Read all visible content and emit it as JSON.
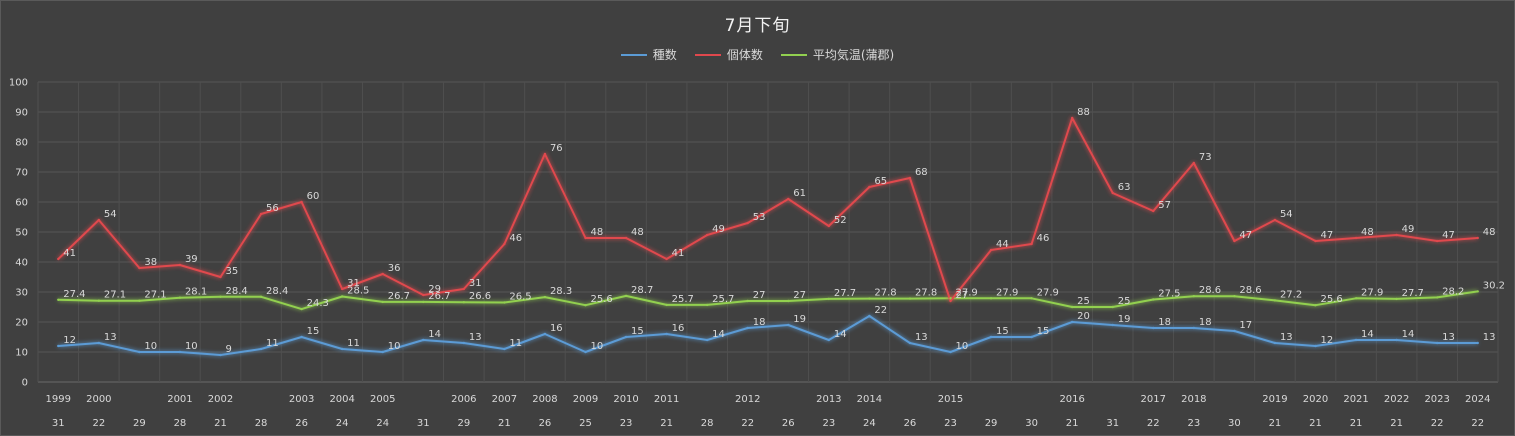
{
  "chart_data": {
    "type": "line",
    "title": "7月下旬",
    "ylim": [
      0,
      100
    ],
    "y_ticks": [
      0,
      10,
      20,
      30,
      40,
      50,
      60,
      70,
      80,
      90,
      100
    ],
    "grid": true,
    "legend_position": "top",
    "categories": [
      {
        "year": "1999",
        "day": "31"
      },
      {
        "year": "2000",
        "day": "22"
      },
      {
        "year": "",
        "day": "29"
      },
      {
        "year": "2001",
        "day": "28"
      },
      {
        "year": "2002",
        "day": "21"
      },
      {
        "year": "",
        "day": "28"
      },
      {
        "year": "2003",
        "day": "26"
      },
      {
        "year": "2004",
        "day": "24"
      },
      {
        "year": "2005",
        "day": "24"
      },
      {
        "year": "",
        "day": "31"
      },
      {
        "year": "2006",
        "day": "29"
      },
      {
        "year": "2007",
        "day": "21"
      },
      {
        "year": "2008",
        "day": "26"
      },
      {
        "year": "2009",
        "day": "25"
      },
      {
        "year": "2010",
        "day": "23"
      },
      {
        "year": "2011",
        "day": "21"
      },
      {
        "year": "",
        "day": "28"
      },
      {
        "year": "2012",
        "day": "22"
      },
      {
        "year": "",
        "day": "26"
      },
      {
        "year": "2013",
        "day": "23"
      },
      {
        "year": "2014",
        "day": "24"
      },
      {
        "year": "",
        "day": "26"
      },
      {
        "year": "2015",
        "day": "23"
      },
      {
        "year": "",
        "day": "29"
      },
      {
        "year": "",
        "day": "30"
      },
      {
        "year": "2016",
        "day": "21"
      },
      {
        "year": "",
        "day": "31"
      },
      {
        "year": "2017",
        "day": "22"
      },
      {
        "year": "2018",
        "day": "23"
      },
      {
        "year": "",
        "day": "30"
      },
      {
        "year": "2019",
        "day": "21"
      },
      {
        "year": "2020",
        "day": "21"
      },
      {
        "year": "2021",
        "day": "21"
      },
      {
        "year": "2022",
        "day": "21"
      },
      {
        "year": "2023",
        "day": "22"
      },
      {
        "year": "2024",
        "day": "22"
      }
    ],
    "series": [
      {
        "name": "種数",
        "color": "#5b9bd5",
        "values": [
          12,
          13,
          10,
          10,
          9,
          11,
          15,
          11,
          10,
          14,
          13,
          11,
          16,
          10,
          15,
          16,
          14,
          18,
          19,
          14,
          22,
          13,
          10,
          15,
          15,
          20,
          19,
          18,
          18,
          17,
          13,
          12,
          14,
          14,
          13,
          13
        ],
        "labels": [
          "12",
          "13",
          "10",
          "10",
          "9",
          "11",
          "15",
          "11",
          "10",
          "14",
          "13",
          "11",
          "16",
          "10",
          "15",
          "16",
          "14",
          "18",
          "19",
          "14",
          "22",
          "13",
          "10",
          "15",
          "15",
          "20",
          "19",
          "18",
          "18",
          "17",
          "13",
          "12",
          "14",
          "14",
          "13",
          "13"
        ]
      },
      {
        "name": "個体数",
        "color": "#e0484d",
        "values": [
          41,
          54,
          38,
          39,
          35,
          56,
          60,
          31,
          36,
          29,
          31,
          46,
          76,
          48,
          48,
          41,
          49,
          53,
          61,
          52,
          65,
          68,
          27,
          44,
          46,
          88,
          63,
          57,
          73,
          47,
          54,
          47,
          48,
          49,
          47,
          48
        ],
        "labels": [
          "41",
          "54",
          "38",
          "39",
          "35",
          "56",
          "60",
          "31",
          "36",
          "29",
          "31",
          "46",
          "76",
          "48",
          "48",
          "41",
          "49",
          "53",
          "61",
          "52",
          "65",
          "68",
          "27",
          "44",
          "46",
          "88",
          "63",
          "57",
          "73",
          "47",
          "54",
          "47",
          "48",
          "49",
          "47",
          "48"
        ]
      },
      {
        "name": "平均気温(蒲郡)",
        "color": "#92d050",
        "values": [
          27.4,
          27.1,
          27.1,
          28.1,
          28.4,
          28.4,
          24.3,
          28.5,
          26.7,
          26.7,
          26.6,
          26.5,
          28.3,
          25.6,
          28.7,
          25.7,
          25.7,
          27,
          27,
          27.7,
          27.8,
          27.8,
          27.9,
          27.9,
          27.9,
          25,
          25,
          27.5,
          28.6,
          28.6,
          27.2,
          25.6,
          27.9,
          27.7,
          28.2,
          30.2
        ],
        "labels": [
          "27.4",
          "27.1",
          "27.1",
          "28.1",
          "28.4",
          "28.4",
          "24.3",
          "28.5",
          "26.7",
          "26.7",
          "26.6",
          "26.5",
          "28.3",
          "25.6",
          "28.7",
          "25.7",
          "25.7",
          "27",
          "27",
          "27.7",
          "27.8",
          "27.8",
          "27.9",
          "27.9",
          "27.9",
          "25",
          "25",
          "27.5",
          "28.6",
          "28.6",
          "27.2",
          "25.6",
          "27.9",
          "27.7",
          "28.2",
          "30.2"
        ]
      }
    ]
  }
}
